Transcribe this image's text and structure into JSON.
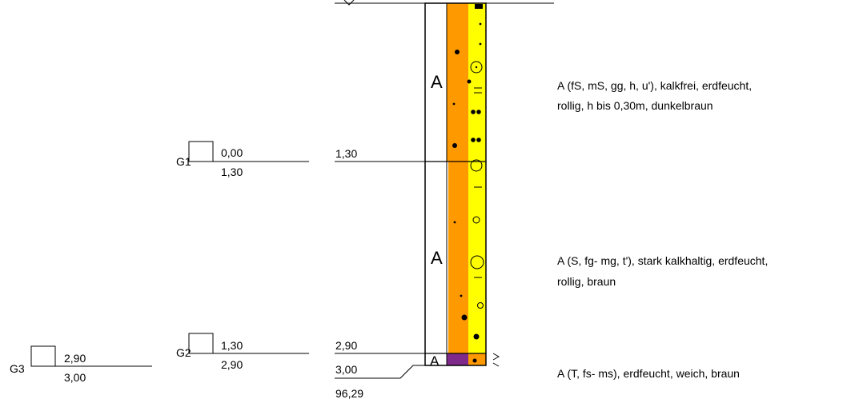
{
  "depth_labels": {
    "d1": "1,30",
    "d2": "2,90",
    "d3": "3,00",
    "base_elevation": "96,29"
  },
  "samples": [
    {
      "name": "G1",
      "top": "0,00",
      "bottom": "1,30"
    },
    {
      "name": "G2",
      "top": "1,30",
      "bottom": "2,90"
    },
    {
      "name": "G3",
      "top": "2,90",
      "bottom": "3,00"
    }
  ],
  "layers": [
    {
      "code": "A",
      "from_m": 0.0,
      "to_m": 1.3,
      "description_line1": "A (fS, mS, gg, h, u'), kalkfrei, erdfeucht,",
      "description_line2": "rollig, h bis 0,30m, dunkelbraun"
    },
    {
      "code": "A",
      "from_m": 1.3,
      "to_m": 2.9,
      "description_line1": "A (S, fg- mg, t'), stark kalkhaltig, erdfeucht,",
      "description_line2": "rollig, braun"
    },
    {
      "code": "A",
      "from_m": 2.9,
      "to_m": 3.0,
      "description_line1": "A (T, fs- ms), erdfeucht, weich, braun",
      "description_line2": ""
    }
  ],
  "colors": {
    "orange": "#ff9900",
    "yellow": "#ffff00",
    "purple": "#7f2a8a",
    "line": "#000000"
  }
}
